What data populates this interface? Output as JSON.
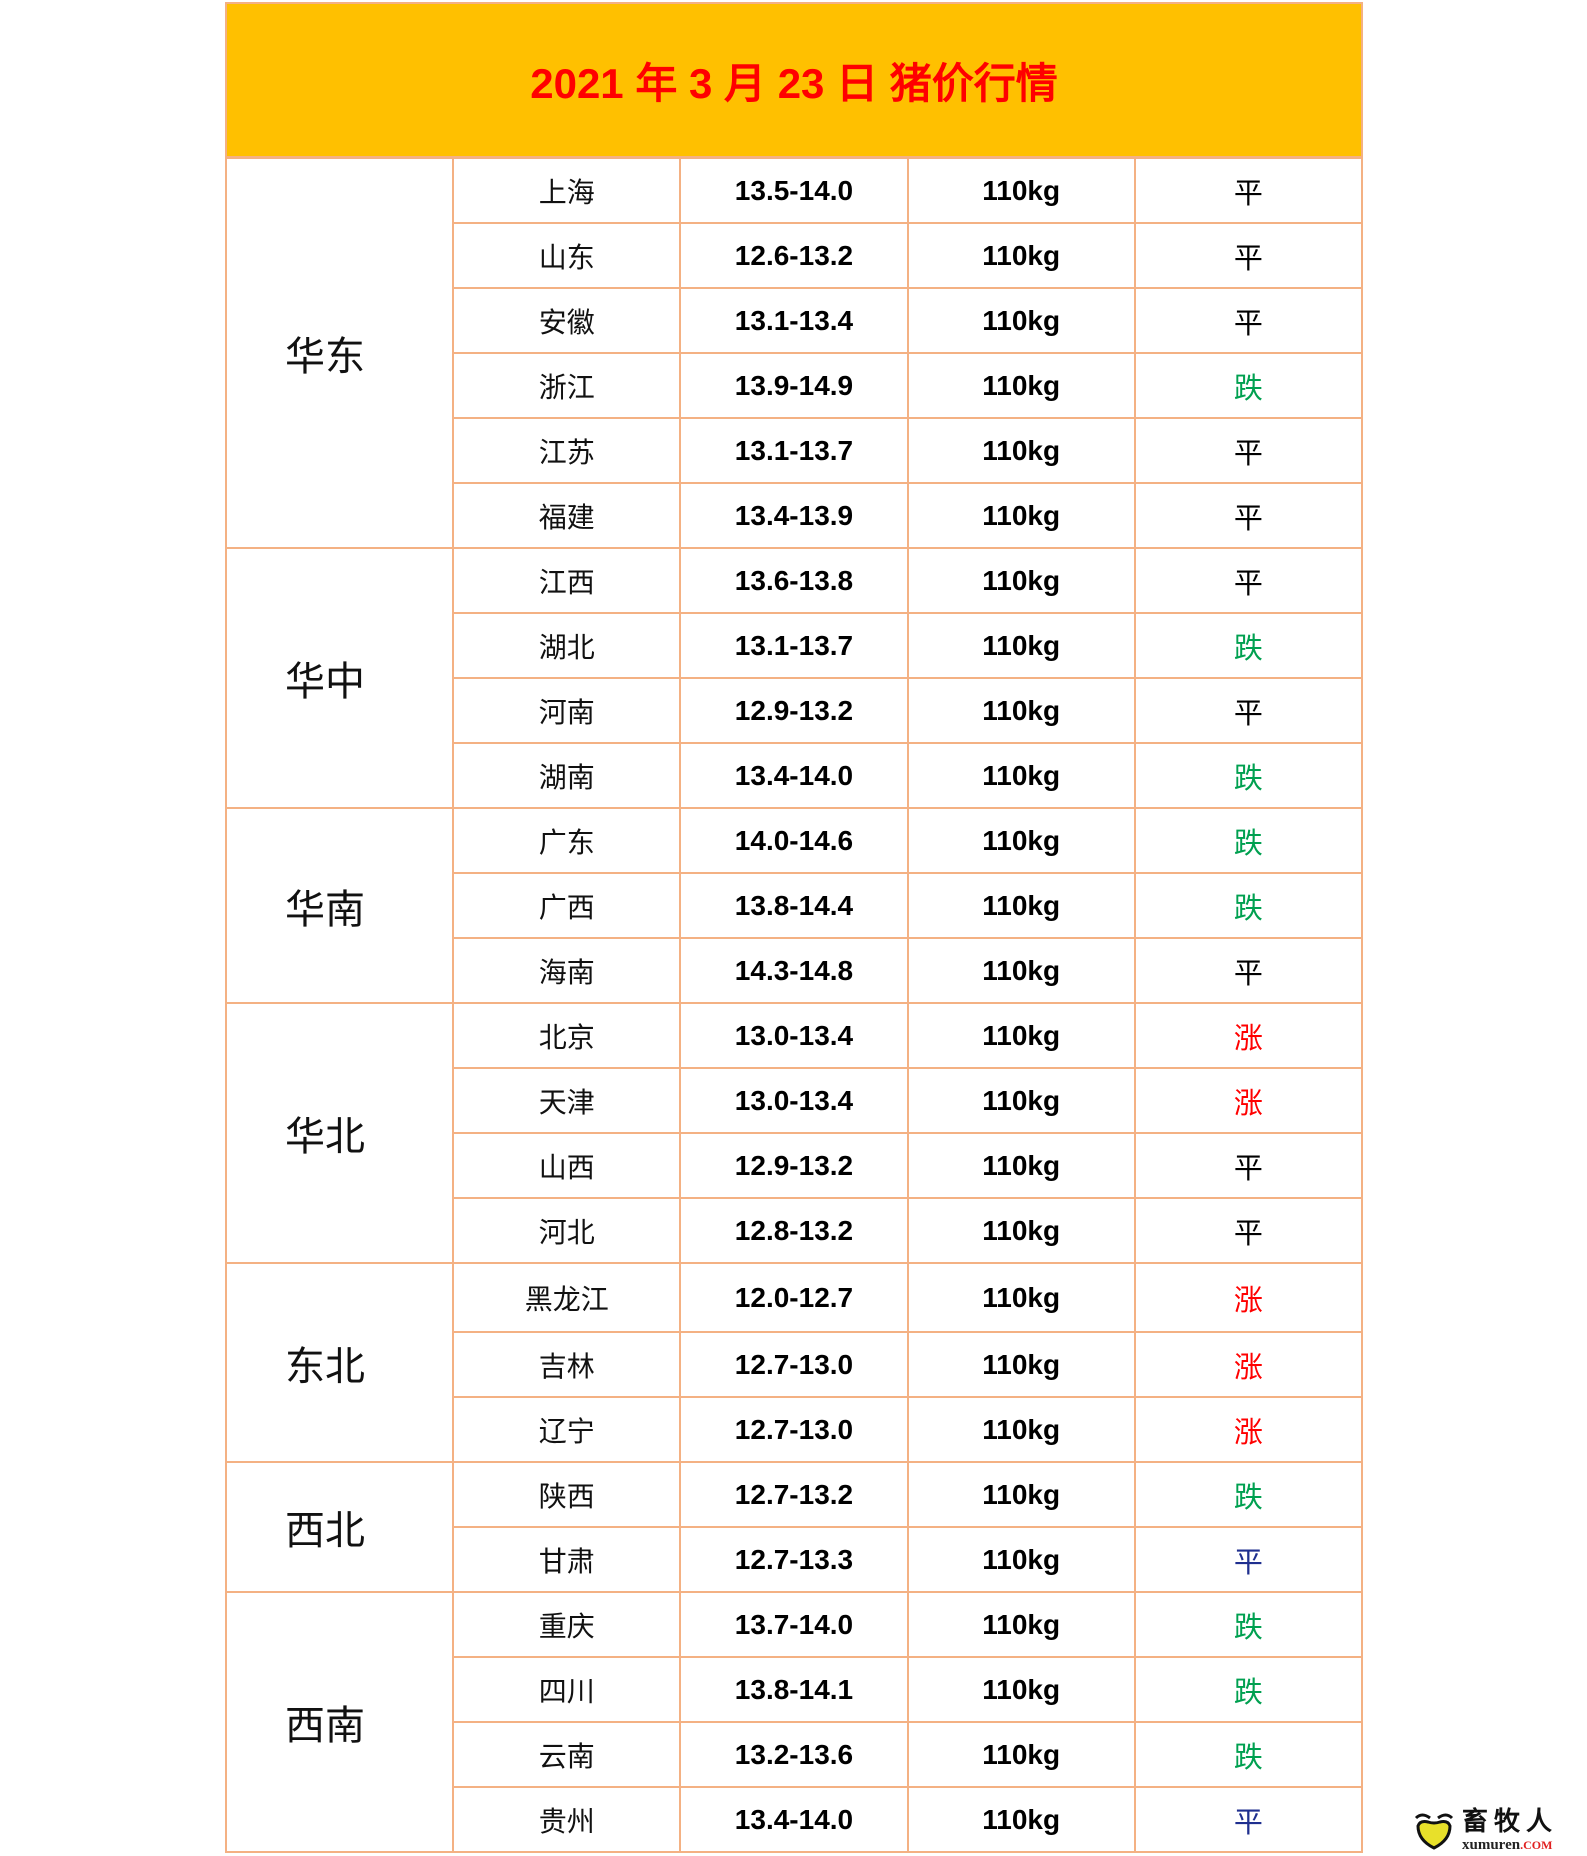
{
  "title": "2021 年 3 月 23 日  猪价行情",
  "colors": {
    "header_bg": "#ffc000",
    "title": "#ff0000",
    "border": "#f4b183",
    "平": "#000000",
    "跌": "#00a050",
    "涨": "#ff0000",
    "平_blue": "#1f2f8f"
  },
  "groups": [
    {
      "region": "华东",
      "rows": [
        {
          "province": "上海",
          "price": "13.5-14.0",
          "weight": "110kg",
          "trend": "平"
        },
        {
          "province": "山东",
          "price": "12.6-13.2",
          "weight": "110kg",
          "trend": "平"
        },
        {
          "province": "安徽",
          "price": "13.1-13.4",
          "weight": "110kg",
          "trend": "平"
        },
        {
          "province": "浙江",
          "price": "13.9-14.9",
          "weight": "110kg",
          "trend": "跌"
        },
        {
          "province": "江苏",
          "price": "13.1-13.7",
          "weight": "110kg",
          "trend": "平"
        },
        {
          "province": "福建",
          "price": "13.4-13.9",
          "weight": "110kg",
          "trend": "平"
        }
      ]
    },
    {
      "region": "华中",
      "rows": [
        {
          "province": "江西",
          "price": "13.6-13.8",
          "weight": "110kg",
          "trend": "平"
        },
        {
          "province": "湖北",
          "price": "13.1-13.7",
          "weight": "110kg",
          "trend": "跌"
        },
        {
          "province": "河南",
          "price": "12.9-13.2",
          "weight": "110kg",
          "trend": "平"
        },
        {
          "province": "湖南",
          "price": "13.4-14.0",
          "weight": "110kg",
          "trend": "跌"
        }
      ]
    },
    {
      "region": "华南",
      "rows": [
        {
          "province": "广东",
          "price": "14.0-14.6",
          "weight": "110kg",
          "trend": "跌"
        },
        {
          "province": "广西",
          "price": "13.8-14.4",
          "weight": "110kg",
          "trend": "跌"
        },
        {
          "province": "海南",
          "price": "14.3-14.8",
          "weight": "110kg",
          "trend": "平"
        }
      ]
    },
    {
      "region": "华北",
      "rows": [
        {
          "province": "北京",
          "price": "13.0-13.4",
          "weight": "110kg",
          "trend": "涨"
        },
        {
          "province": "天津",
          "price": "13.0-13.4",
          "weight": "110kg",
          "trend": "涨"
        },
        {
          "province": "山西",
          "price": "12.9-13.2",
          "weight": "110kg",
          "trend": "平"
        },
        {
          "province": "河北",
          "price": "12.8-13.2",
          "weight": "110kg",
          "trend": "平"
        }
      ]
    },
    {
      "region": "东北",
      "rows": [
        {
          "province": "黑龙江",
          "price": "12.0-12.7",
          "weight": "110kg",
          "trend": "涨"
        },
        {
          "province": "吉林",
          "price": "12.7-13.0",
          "weight": "110kg",
          "trend": "涨"
        },
        {
          "province": "辽宁",
          "price": "12.7-13.0",
          "weight": "110kg",
          "trend": "涨"
        }
      ]
    },
    {
      "region": "西北",
      "rows": [
        {
          "province": "陕西",
          "price": "12.7-13.2",
          "weight": "110kg",
          "trend": "跌"
        },
        {
          "province": "甘肃",
          "price": "12.7-13.3",
          "weight": "110kg",
          "trend": "平",
          "trend_color": "#1f2f8f"
        }
      ]
    },
    {
      "region": "西南",
      "rows": [
        {
          "province": "重庆",
          "price": "13.7-14.0",
          "weight": "110kg",
          "trend": "跌"
        },
        {
          "province": "四川",
          "price": "13.8-14.1",
          "weight": "110kg",
          "trend": "跌"
        },
        {
          "province": "云南",
          "price": "13.2-13.6",
          "weight": "110kg",
          "trend": "跌"
        },
        {
          "province": "贵州",
          "price": "13.4-14.0",
          "weight": "110kg",
          "trend": "平",
          "trend_color": "#1f2f8f"
        }
      ]
    }
  ],
  "watermark": {
    "name": "畜牧人",
    "domain": "xumuren",
    "tld": ".COM"
  }
}
